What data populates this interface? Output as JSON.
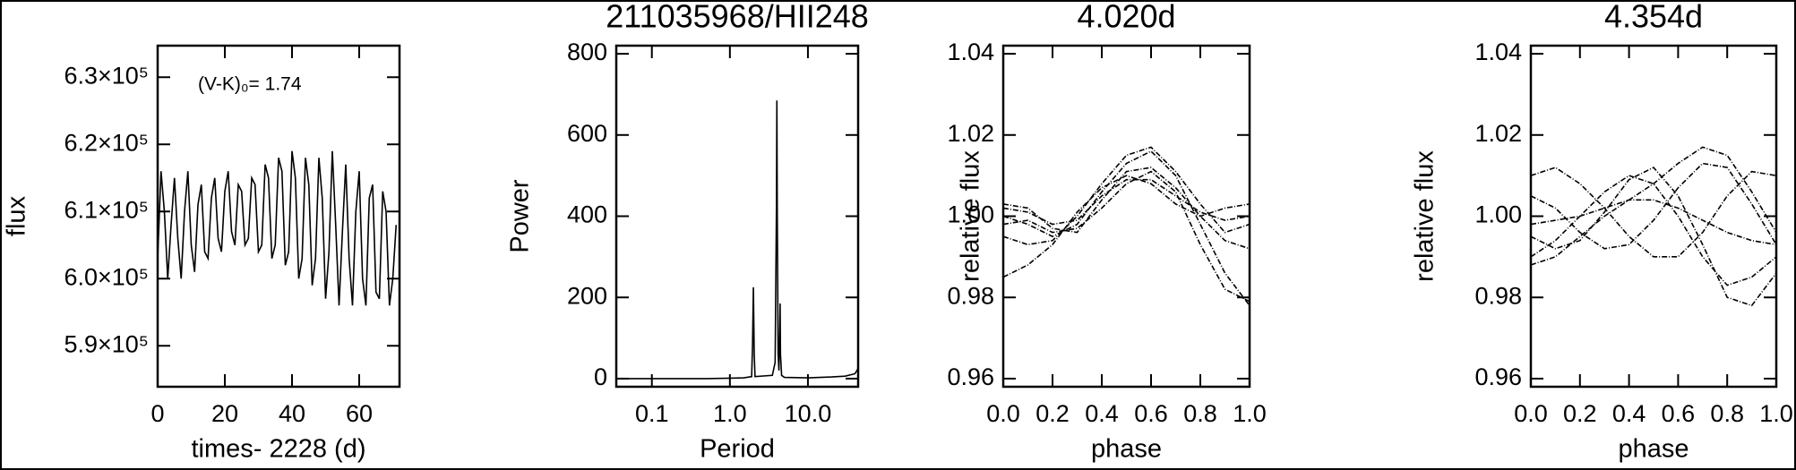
{
  "chart_data": [
    {
      "type": "line",
      "color": "#000000",
      "xlabel": "times- 2228 (d)",
      "ylabel": "flux",
      "annotation": "(V-K)₀= 1.74",
      "x": [
        0,
        1,
        2,
        3,
        4,
        5,
        6,
        7,
        8,
        9,
        10,
        11,
        12,
        13,
        14,
        15,
        16,
        17,
        18,
        19,
        20,
        21,
        22,
        23,
        24,
        25,
        26,
        27,
        28,
        29,
        30,
        31,
        32,
        33,
        34,
        35,
        36,
        37,
        38,
        39,
        40,
        41,
        42,
        43,
        44,
        45,
        46,
        47,
        48,
        49,
        50,
        51,
        52,
        53,
        54,
        55,
        56,
        57,
        58,
        59,
        60,
        61,
        62,
        63,
        64,
        65,
        66,
        67,
        68,
        69,
        70,
        71
      ],
      "values": [
        603000,
        616000,
        610000,
        600000,
        608000,
        615000,
        606000,
        600000,
        610000,
        616000,
        605000,
        601000,
        611000,
        614000,
        604000,
        603000,
        612000,
        615000,
        606000,
        604000,
        613000,
        616000,
        607000,
        605000,
        614000,
        613000,
        605000,
        606000,
        615000,
        614000,
        604000,
        605000,
        617000,
        615000,
        603000,
        605000,
        618000,
        616000,
        602000,
        604000,
        619000,
        615000,
        600000,
        603000,
        618000,
        614000,
        599000,
        603000,
        618000,
        612000,
        597000,
        604000,
        619000,
        608000,
        596000,
        607000,
        617000,
        603000,
        596000,
        610000,
        616000,
        600000,
        596000,
        612000,
        614000,
        598000,
        597000,
        613000,
        610000,
        596000,
        600000,
        608000
      ],
      "xlim": [
        0,
        72
      ],
      "ylim": [
        583900,
        634700
      ],
      "xticks": [
        0,
        20,
        40,
        60
      ],
      "yticks": [
        {
          "value": 590000,
          "label": "5.9×10⁵"
        },
        {
          "value": 600000,
          "label": "6.0×10⁵"
        },
        {
          "value": 610000,
          "label": "6.1×10⁵"
        },
        {
          "value": 620000,
          "label": "6.2×10⁵"
        },
        {
          "value": 630000,
          "label": "6.3×10⁵"
        }
      ]
    },
    {
      "type": "line",
      "color": "#000000",
      "title": "211035968/HII248",
      "xlabel": "Period",
      "ylabel": "Power",
      "log_x": true,
      "x": [
        0.035,
        0.1,
        0.5,
        1.0,
        1.5,
        1.9,
        1.95,
        2.0,
        2.05,
        2.1,
        3.5,
        3.8,
        3.95,
        4.0,
        4.05,
        4.15,
        4.25,
        4.35,
        4.4,
        4.45,
        4.6,
        5,
        10,
        20,
        30,
        40,
        44
      ],
      "values": [
        0,
        0,
        0,
        1,
        2,
        5,
        80,
        225,
        60,
        5,
        8,
        40,
        420,
        685,
        400,
        60,
        20,
        120,
        185,
        60,
        8,
        3,
        2,
        4,
        6,
        12,
        25
      ],
      "xlim": [
        0.035,
        44
      ],
      "ylim": [
        -20,
        820
      ],
      "xticks": [
        0.1,
        {
          "value": 1,
          "label": "1.0"
        },
        {
          "value": 10,
          "label": "10.0"
        }
      ],
      "yticks": [
        0,
        200,
        400,
        600,
        800
      ]
    },
    {
      "type": "line",
      "color": "#000000",
      "title": "4.020d",
      "xlabel": "phase",
      "ylabel": "relative flux",
      "x": [
        0,
        0.1,
        0.2,
        0.3,
        0.4,
        0.5,
        0.6,
        0.7,
        0.8,
        0.9,
        1.0
      ],
      "series": [
        {
          "values": [
            1.0,
            0.998,
            0.995,
            0.998,
            1.006,
            1.013,
            1.016,
            1.01,
            0.998,
            0.986,
            0.978
          ]
        },
        {
          "values": [
            1.003,
            1.002,
            0.997,
            0.996,
            1.004,
            1.011,
            1.012,
            1.007,
            1.0,
            0.994,
            0.992
          ]
        },
        {
          "values": [
            0.995,
            0.993,
            0.994,
            1.0,
            1.008,
            1.015,
            1.017,
            1.011,
            1.003,
            0.996,
            0.998
          ]
        },
        {
          "values": [
            0.985,
            0.988,
            0.993,
            1.001,
            1.007,
            1.01,
            1.008,
            1.003,
            1.0,
            1.002,
            1.003
          ]
        },
        {
          "values": [
            0.998,
            0.999,
            0.996,
            0.997,
            1.002,
            1.008,
            1.011,
            1.006,
            0.993,
            0.982,
            0.979
          ]
        },
        {
          "values": [
            1.002,
            1.001,
            0.998,
            0.999,
            1.005,
            1.009,
            1.009,
            1.005,
            1.001,
            0.999,
            1.0
          ]
        }
      ],
      "xlim": [
        0,
        1
      ],
      "ylim": [
        0.958,
        1.042
      ],
      "xticks": [
        {
          "value": 0,
          "label": "0.0"
        },
        0.2,
        0.4,
        0.6,
        0.8,
        {
          "value": 1,
          "label": "1.0"
        }
      ],
      "yticks": [
        0.96,
        0.98,
        {
          "value": 1,
          "label": "1.00"
        },
        1.02,
        1.04
      ]
    },
    {
      "type": "line",
      "color": "#000000",
      "title": "4.354d",
      "xlabel": "phase",
      "ylabel": "relative flux",
      "x": [
        0,
        0.1,
        0.2,
        0.3,
        0.4,
        0.5,
        0.6,
        0.7,
        0.8,
        0.9,
        1.0
      ],
      "series": [
        {
          "values": [
            0.99,
            0.994,
            1.0,
            1.006,
            1.01,
            1.008,
            1.0,
            0.99,
            0.983,
            0.985,
            0.99
          ]
        },
        {
          "values": [
            1.01,
            1.012,
            1.008,
            1.002,
            0.995,
            0.99,
            0.99,
            0.996,
            1.005,
            1.011,
            1.01
          ]
        },
        {
          "values": [
            0.988,
            0.99,
            0.995,
            1.0,
            1.004,
            1.008,
            1.013,
            1.017,
            1.015,
            1.006,
            0.996
          ]
        },
        {
          "values": [
            0.995,
            0.992,
            0.994,
            1.001,
            1.009,
            1.012,
            1.005,
            0.993,
            0.98,
            0.978,
            0.986
          ]
        },
        {
          "values": [
            1.005,
            1.002,
            0.996,
            0.992,
            0.993,
            0.999,
            1.007,
            1.013,
            1.012,
            1.003,
            0.993
          ]
        },
        {
          "values": [
            0.998,
            0.999,
            1.0,
            1.002,
            1.004,
            1.004,
            1.002,
            0.999,
            0.996,
            0.994,
            0.993
          ]
        }
      ],
      "xlim": [
        0,
        1
      ],
      "ylim": [
        0.958,
        1.042
      ],
      "xticks": [
        {
          "value": 0,
          "label": "0.0"
        },
        0.2,
        0.4,
        0.6,
        0.8,
        {
          "value": 1,
          "label": "1.0"
        }
      ],
      "yticks": [
        0.96,
        0.98,
        {
          "value": 1,
          "label": "1.00"
        },
        1.02,
        1.04
      ]
    }
  ]
}
